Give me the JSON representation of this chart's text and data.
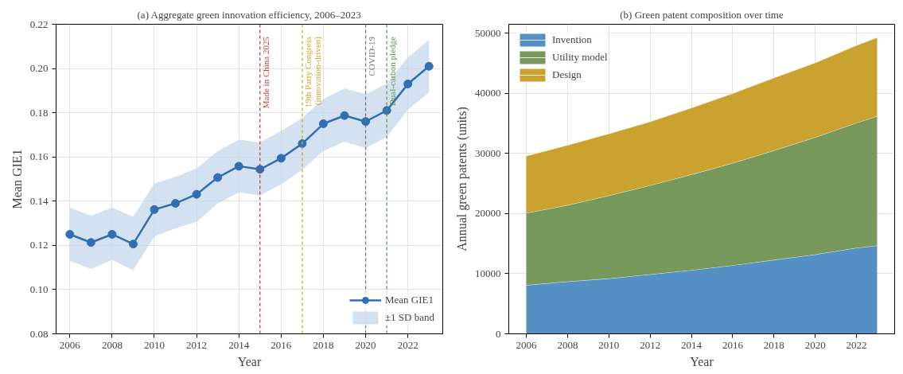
{
  "chart_data": [
    {
      "type": "line",
      "title": "(a) Aggregate green innovation efficiency, 2006–2023",
      "xlabel": "Year",
      "ylabel": "Mean GIE1",
      "x": [
        2006,
        2007,
        2008,
        2009,
        2010,
        2011,
        2012,
        2013,
        2014,
        2015,
        2016,
        2017,
        2018,
        2019,
        2020,
        2021,
        2022,
        2023
      ],
      "series": [
        {
          "name": "Mean GIE1",
          "color": "#2f6fb2",
          "values": [
            0.125,
            0.1213,
            0.125,
            0.1206,
            0.1362,
            0.139,
            0.1431,
            0.1507,
            0.1558,
            0.1544,
            0.1594,
            0.166,
            0.175,
            0.1787,
            0.176,
            0.181,
            0.193,
            0.201
          ]
        },
        {
          "name": "±1 SD band",
          "type": "area",
          "color": "#c5d7eb",
          "values": [
            null,
            null,
            null,
            null,
            null,
            null,
            null,
            null,
            null,
            null,
            null,
            null,
            null,
            null,
            null,
            null,
            null,
            null
          ],
          "lower": [
            0.113,
            0.1093,
            0.1134,
            0.1088,
            0.124,
            0.1277,
            0.1307,
            0.1389,
            0.144,
            0.1425,
            0.1476,
            0.1542,
            0.1627,
            0.1669,
            0.164,
            0.169,
            0.1814,
            0.1891
          ],
          "upper": [
            0.137,
            0.1334,
            0.137,
            0.133,
            0.148,
            0.151,
            0.1548,
            0.1627,
            0.1678,
            0.1666,
            0.1718,
            0.1776,
            0.1863,
            0.191,
            0.1883,
            0.1932,
            0.205,
            0.213
          ]
        }
      ],
      "ref_lines": [
        {
          "axis": "x",
          "value": 2015,
          "label": "Made in China 2025",
          "color": "#c8423c",
          "line_style": "dashed"
        },
        {
          "axis": "x",
          "value": 2017,
          "label": "19th Party Congress\n(innovation-driven)",
          "color": "#d4a62a",
          "line_style": "dashed"
        },
        {
          "axis": "x",
          "value": 2020,
          "label": "COVID-19",
          "color": "#777777",
          "line_style": "dashed"
        },
        {
          "axis": "x",
          "value": 2021,
          "label": "Dual-carbon pledge",
          "color": "#5f9a45",
          "line_style": "dashed"
        }
      ],
      "xlim": [
        2005.35,
        2023.65
      ],
      "xticks": [
        2006,
        2008,
        2010,
        2012,
        2014,
        2016,
        2018,
        2020,
        2022
      ],
      "ylim": [
        0.08,
        0.22
      ],
      "yticks": [
        {
          "value": 0.08,
          "label": "0.08"
        },
        {
          "value": 0.1,
          "label": "0.10"
        },
        {
          "value": 0.12,
          "label": "0.12"
        },
        {
          "value": 0.14,
          "label": "0.14"
        },
        {
          "value": 0.16,
          "label": "0.16"
        },
        {
          "value": 0.18,
          "label": "0.18"
        },
        {
          "value": 0.2,
          "label": "0.20"
        },
        {
          "value": 0.22,
          "label": "0.22"
        }
      ],
      "grid": true,
      "legend": "bottom right",
      "marker": "circle",
      "line_style": "solid"
    },
    {
      "type": "area",
      "stacked": true,
      "title": "(b) Green patent composition over time",
      "xlabel": "Year",
      "ylabel": "Annual green patents (units)",
      "x": [
        2006,
        2008,
        2010,
        2012,
        2014,
        2016,
        2018,
        2020,
        2022,
        2023
      ],
      "series": [
        {
          "name": "Invention",
          "color": "#5590c5",
          "values": [
            8100,
            8700,
            9200,
            9900,
            10600,
            11400,
            12300,
            13200,
            14300,
            14700
          ]
        },
        {
          "name": "Utility model",
          "color": "#76985a",
          "values": [
            12000,
            12700,
            13800,
            14800,
            15900,
            17000,
            18200,
            19500,
            20800,
            21500
          ]
        },
        {
          "name": "Design",
          "color": "#c9a230",
          "values": [
            9500,
            10000,
            10300,
            10600,
            11100,
            11600,
            12100,
            12400,
            12900,
            13100
          ]
        }
      ],
      "xlim": [
        2005.15,
        2023.85
      ],
      "xticks": [
        2006,
        2008,
        2010,
        2012,
        2014,
        2016,
        2018,
        2020,
        2022
      ],
      "ylim": [
        0,
        51500
      ],
      "yticks": [
        0,
        10000,
        20000,
        30000,
        40000,
        50000
      ],
      "grid": true,
      "legend": "top left"
    }
  ]
}
